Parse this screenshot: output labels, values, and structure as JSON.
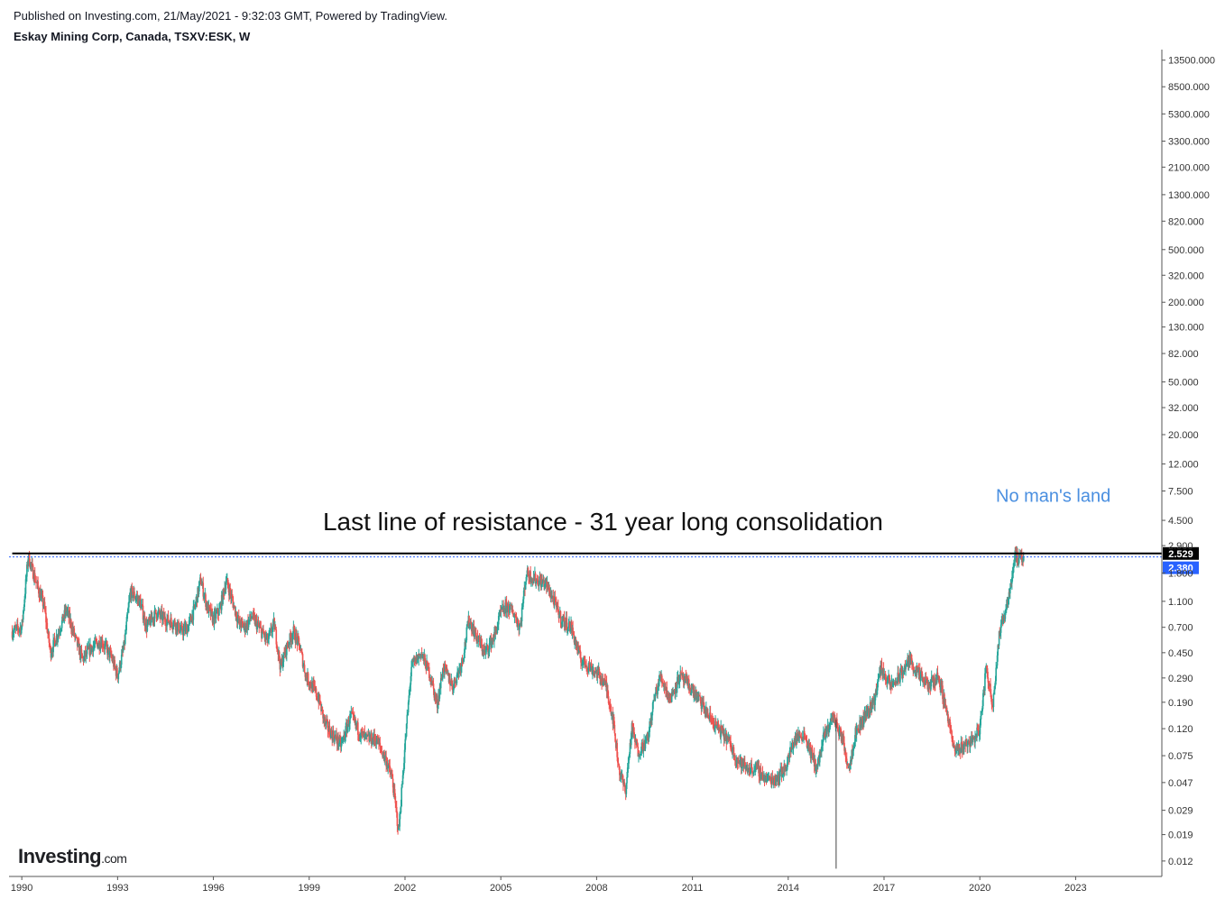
{
  "header": {
    "published": "Published on Investing.com, 21/May/2021 - 9:32:03 GMT, Powered by TradingView.",
    "symbol": "Eskay Mining Corp, Canada, TSXV:ESK, W"
  },
  "logo": {
    "name": "Investing",
    "suffix": ".com"
  },
  "colors": {
    "up": "#26a69a",
    "down": "#ef5350",
    "resistance": "#000000",
    "price_line": "#2962ff",
    "current_badge": "#2962ff",
    "resistance_badge": "#000000",
    "annotation_blue": "#4a8fe0",
    "axis": "#555555"
  },
  "chart_data": {
    "type": "candlestick",
    "title": "Eskay Mining Corp, Canada, TSXV:ESK, W",
    "scale": "log",
    "xlim": [
      1989.6,
      2025.7
    ],
    "ylim": [
      0.0104,
      15000
    ],
    "y_ticks": [
      "13500.000",
      "8500.000",
      "5300.000",
      "3300.000",
      "2100.000",
      "1300.000",
      "820.000",
      "500.000",
      "320.000",
      "200.000",
      "130.000",
      "82.000",
      "50.000",
      "32.000",
      "20.000",
      "12.000",
      "7.500",
      "4.500",
      "2.900",
      "1.800",
      "1.100",
      "0.700",
      "0.450",
      "0.290",
      "0.190",
      "0.120",
      "0.075",
      "0.047",
      "0.029",
      "0.019",
      "0.012"
    ],
    "x_ticks": [
      "1990",
      "1993",
      "1996",
      "1999",
      "2002",
      "2005",
      "2008",
      "2011",
      "2014",
      "2017",
      "2020",
      "2023"
    ],
    "price_path": [
      [
        1989.7,
        0.65
      ],
      [
        1990.0,
        0.7
      ],
      [
        1990.2,
        2.4
      ],
      [
        1990.5,
        1.4
      ],
      [
        1990.7,
        1.0
      ],
      [
        1990.9,
        0.45
      ],
      [
        1991.2,
        0.7
      ],
      [
        1991.4,
        0.95
      ],
      [
        1991.7,
        0.55
      ],
      [
        1991.9,
        0.4
      ],
      [
        1992.2,
        0.5
      ],
      [
        1992.5,
        0.55
      ],
      [
        1992.8,
        0.42
      ],
      [
        1993.0,
        0.3
      ],
      [
        1993.2,
        0.5
      ],
      [
        1993.4,
        1.3
      ],
      [
        1993.7,
        1.1
      ],
      [
        1993.9,
        0.7
      ],
      [
        1994.2,
        0.9
      ],
      [
        1994.5,
        0.8
      ],
      [
        1994.8,
        0.75
      ],
      [
        1995.0,
        0.65
      ],
      [
        1995.2,
        0.7
      ],
      [
        1995.4,
        0.95
      ],
      [
        1995.6,
        1.6
      ],
      [
        1995.8,
        1.0
      ],
      [
        1996.0,
        0.8
      ],
      [
        1996.2,
        0.95
      ],
      [
        1996.4,
        1.6
      ],
      [
        1996.6,
        1.1
      ],
      [
        1996.8,
        0.75
      ],
      [
        1997.0,
        0.7
      ],
      [
        1997.2,
        0.85
      ],
      [
        1997.5,
        0.65
      ],
      [
        1997.7,
        0.55
      ],
      [
        1997.9,
        0.75
      ],
      [
        1998.1,
        0.35
      ],
      [
        1998.3,
        0.5
      ],
      [
        1998.5,
        0.65
      ],
      [
        1998.7,
        0.5
      ],
      [
        1998.9,
        0.3
      ],
      [
        1999.1,
        0.25
      ],
      [
        1999.3,
        0.2
      ],
      [
        1999.5,
        0.13
      ],
      [
        1999.7,
        0.11
      ],
      [
        2000.0,
        0.09
      ],
      [
        2000.3,
        0.15
      ],
      [
        2000.6,
        0.11
      ],
      [
        2000.8,
        0.1
      ],
      [
        2001.1,
        0.1
      ],
      [
        2001.4,
        0.07
      ],
      [
        2001.6,
        0.05
      ],
      [
        2001.8,
        0.02
      ],
      [
        2002.0,
        0.09
      ],
      [
        2002.2,
        0.35
      ],
      [
        2002.5,
        0.45
      ],
      [
        2002.8,
        0.3
      ],
      [
        2003.0,
        0.18
      ],
      [
        2003.2,
        0.35
      ],
      [
        2003.5,
        0.25
      ],
      [
        2003.8,
        0.4
      ],
      [
        2004.0,
        0.8
      ],
      [
        2004.3,
        0.55
      ],
      [
        2004.5,
        0.45
      ],
      [
        2004.8,
        0.6
      ],
      [
        2005.0,
        0.9
      ],
      [
        2005.2,
        1.0
      ],
      [
        2005.4,
        0.9
      ],
      [
        2005.6,
        0.7
      ],
      [
        2005.8,
        1.8
      ],
      [
        2006.1,
        1.6
      ],
      [
        2006.4,
        1.5
      ],
      [
        2006.6,
        1.2
      ],
      [
        2006.9,
        0.8
      ],
      [
        2007.2,
        0.7
      ],
      [
        2007.5,
        0.4
      ],
      [
        2007.8,
        0.35
      ],
      [
        2008.1,
        0.3
      ],
      [
        2008.3,
        0.25
      ],
      [
        2008.5,
        0.15
      ],
      [
        2008.7,
        0.06
      ],
      [
        2008.9,
        0.04
      ],
      [
        2009.1,
        0.12
      ],
      [
        2009.3,
        0.08
      ],
      [
        2009.6,
        0.1
      ],
      [
        2009.8,
        0.2
      ],
      [
        2010.0,
        0.3
      ],
      [
        2010.3,
        0.2
      ],
      [
        2010.6,
        0.3
      ],
      [
        2010.9,
        0.25
      ],
      [
        2011.2,
        0.2
      ],
      [
        2011.5,
        0.15
      ],
      [
        2011.8,
        0.12
      ],
      [
        2012.1,
        0.1
      ],
      [
        2012.4,
        0.07
      ],
      [
        2012.7,
        0.06
      ],
      [
        2013.0,
        0.06
      ],
      [
        2013.3,
        0.05
      ],
      [
        2013.6,
        0.05
      ],
      [
        2013.9,
        0.06
      ],
      [
        2014.2,
        0.1
      ],
      [
        2014.5,
        0.11
      ],
      [
        2014.7,
        0.08
      ],
      [
        2014.9,
        0.06
      ],
      [
        2015.1,
        0.1
      ],
      [
        2015.4,
        0.15
      ],
      [
        2015.7,
        0.1
      ],
      [
        2015.9,
        0.06
      ],
      [
        2016.1,
        0.11
      ],
      [
        2016.4,
        0.15
      ],
      [
        2016.7,
        0.2
      ],
      [
        2016.9,
        0.35
      ],
      [
        2017.2,
        0.25
      ],
      [
        2017.5,
        0.3
      ],
      [
        2017.8,
        0.4
      ],
      [
        2018.1,
        0.3
      ],
      [
        2018.4,
        0.25
      ],
      [
        2018.7,
        0.3
      ],
      [
        2019.0,
        0.15
      ],
      [
        2019.2,
        0.08
      ],
      [
        2019.5,
        0.09
      ],
      [
        2019.8,
        0.1
      ],
      [
        2020.0,
        0.12
      ],
      [
        2020.2,
        0.35
      ],
      [
        2020.4,
        0.18
      ],
      [
        2020.6,
        0.6
      ],
      [
        2020.8,
        0.95
      ],
      [
        2021.0,
        1.6
      ],
      [
        2021.1,
        2.6
      ],
      [
        2021.2,
        2.2
      ],
      [
        2021.38,
        2.38
      ]
    ],
    "resistance": {
      "value": 2.529,
      "label": "2.529",
      "from": 1989.7,
      "to": 2025.7
    },
    "current_price": {
      "value": 2.38,
      "label": "2.380"
    },
    "annotations": [
      {
        "text": "Last line of resistance - 31 year long consolidation",
        "x": 2008.2,
        "y": 3.8
      },
      {
        "text": "No man's land",
        "x": 2022.3,
        "y": 6.2
      }
    ],
    "spike": {
      "x": 2015.5,
      "low": 0.0105,
      "high": 0.14
    },
    "grid": false
  }
}
